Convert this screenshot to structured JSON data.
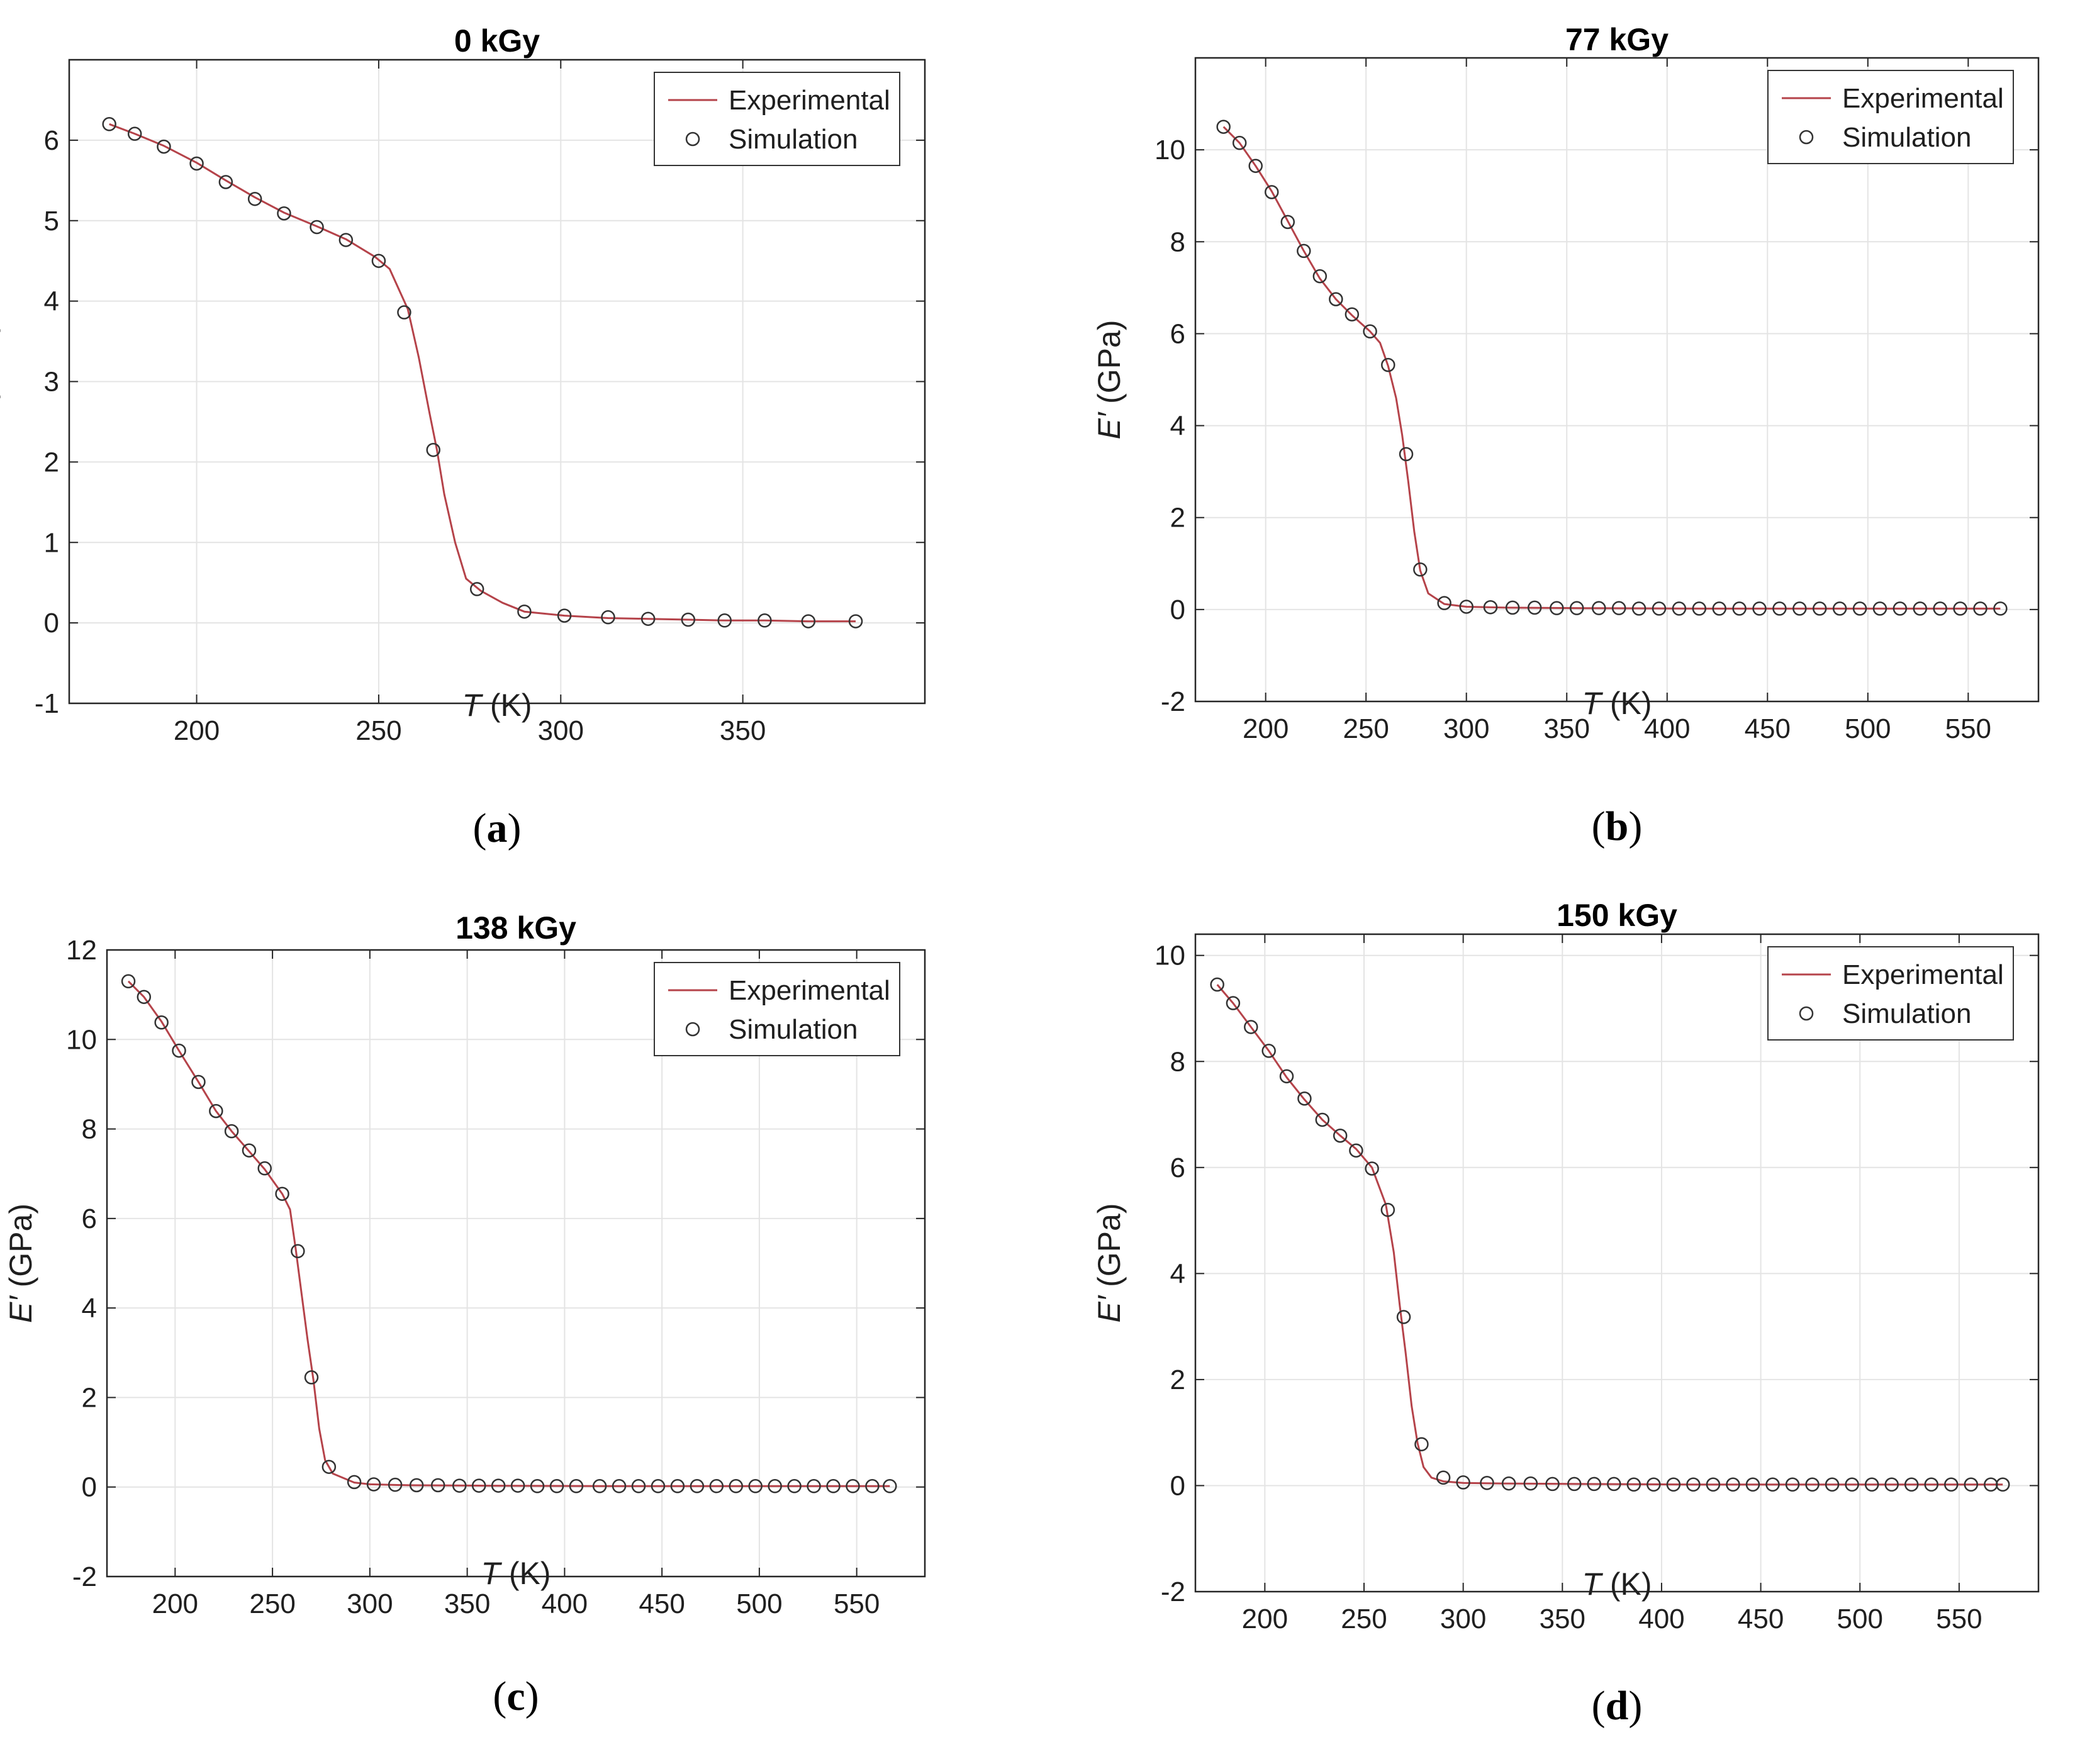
{
  "chart_data": [
    {
      "type": "line",
      "panel_label": "(a)",
      "title": "0 kGy",
      "xlabel": "T (K)",
      "ylabel": "E′ (GPa)",
      "xlim": [
        165,
        400
      ],
      "ylim": [
        -1,
        7
      ],
      "xticks": [
        200,
        250,
        300,
        350
      ],
      "yticks": [
        -1,
        0,
        1,
        2,
        3,
        4,
        5,
        6
      ],
      "grid": true,
      "legend_position": "top-right",
      "series": [
        {
          "name": "Experimental",
          "style": "line",
          "color": "#b5434a",
          "x": [
            176,
            183,
            191,
            200,
            208,
            216,
            224,
            233,
            241,
            249,
            253,
            258,
            261,
            264,
            266,
            268,
            271,
            274,
            278,
            284,
            290,
            301,
            313,
            324,
            335,
            345,
            356,
            368,
            381
          ],
          "y": [
            6.2,
            6.08,
            5.93,
            5.72,
            5.5,
            5.29,
            5.1,
            4.93,
            4.77,
            4.55,
            4.4,
            3.9,
            3.3,
            2.6,
            2.15,
            1.6,
            1.0,
            0.55,
            0.4,
            0.25,
            0.14,
            0.09,
            0.06,
            0.05,
            0.04,
            0.03,
            0.03,
            0.02,
            0.02
          ]
        },
        {
          "name": "Simulation",
          "style": "markers",
          "color": "#333333",
          "x": [
            176,
            183,
            191,
            200,
            208,
            216,
            224,
            233,
            241,
            250,
            257,
            265,
            277,
            290,
            301,
            313,
            324,
            335,
            345,
            356,
            368,
            381
          ],
          "y": [
            6.2,
            6.08,
            5.92,
            5.71,
            5.48,
            5.27,
            5.09,
            4.92,
            4.76,
            4.5,
            3.86,
            2.15,
            0.42,
            0.14,
            0.09,
            0.07,
            0.05,
            0.04,
            0.03,
            0.03,
            0.02,
            0.02
          ]
        }
      ]
    },
    {
      "type": "line",
      "panel_label": "(b)",
      "title": "77 kGy",
      "xlabel": "T (K)",
      "ylabel": "E′ (GPa)",
      "xlim": [
        165,
        585
      ],
      "ylim": [
        -2,
        12
      ],
      "xticks": [
        200,
        250,
        300,
        350,
        400,
        450,
        500,
        550
      ],
      "yticks": [
        -2,
        0,
        2,
        4,
        6,
        8,
        10
      ],
      "grid": true,
      "legend_position": "top-right",
      "series": [
        {
          "name": "Experimental",
          "style": "line",
          "color": "#b5434a",
          "x": [
            179,
            187,
            195,
            203,
            211,
            219,
            227,
            235,
            243,
            252,
            257,
            261,
            265,
            268,
            271,
            274,
            277,
            281,
            289,
            300,
            320,
            360,
            420,
            480,
            540,
            566
          ],
          "y": [
            10.5,
            10.15,
            9.65,
            9.1,
            8.45,
            7.8,
            7.2,
            6.75,
            6.4,
            6.05,
            5.8,
            5.3,
            4.6,
            3.8,
            2.8,
            1.7,
            0.85,
            0.35,
            0.12,
            0.06,
            0.04,
            0.03,
            0.02,
            0.02,
            0.02,
            0.02
          ]
        },
        {
          "name": "Simulation",
          "style": "markers",
          "color": "#333333",
          "x": [
            179,
            187,
            195,
            203,
            211,
            219,
            227,
            235,
            243,
            252,
            261,
            270,
            277,
            289,
            300,
            312,
            323,
            334,
            345,
            355,
            366,
            376,
            386,
            396,
            406,
            416,
            426,
            436,
            446,
            456,
            466,
            476,
            486,
            496,
            506,
            516,
            526,
            536,
            546,
            556,
            566
          ],
          "y": [
            10.5,
            10.15,
            9.65,
            9.08,
            8.43,
            7.8,
            7.25,
            6.75,
            6.42,
            6.05,
            5.32,
            3.38,
            0.87,
            0.14,
            0.06,
            0.05,
            0.04,
            0.04,
            0.03,
            0.03,
            0.03,
            0.03,
            0.02,
            0.02,
            0.02,
            0.02,
            0.02,
            0.02,
            0.02,
            0.02,
            0.02,
            0.02,
            0.02,
            0.02,
            0.02,
            0.02,
            0.02,
            0.02,
            0.02,
            0.02,
            0.02
          ]
        }
      ]
    },
    {
      "type": "line",
      "panel_label": "(c)",
      "title": "138 kGy",
      "xlabel": "T (K)",
      "ylabel": "E′ (GPa)",
      "xlim": [
        165,
        585
      ],
      "ylim": [
        -2,
        12
      ],
      "xticks": [
        200,
        250,
        300,
        350,
        400,
        450,
        500,
        550
      ],
      "yticks": [
        -2,
        0,
        2,
        4,
        6,
        8,
        10,
        12
      ],
      "grid": true,
      "legend_position": "top-right",
      "series": [
        {
          "name": "Experimental",
          "style": "line",
          "color": "#b5434a",
          "x": [
            176,
            184,
            193,
            202,
            212,
            221,
            229,
            238,
            246,
            255,
            259,
            262,
            265,
            268,
            271,
            274,
            277,
            281,
            292,
            300,
            320,
            360,
            420,
            480,
            540,
            567
          ],
          "y": [
            11.3,
            10.95,
            10.4,
            9.75,
            9.05,
            8.4,
            7.95,
            7.5,
            7.1,
            6.55,
            6.2,
            5.3,
            4.3,
            3.3,
            2.4,
            1.3,
            0.6,
            0.3,
            0.1,
            0.06,
            0.04,
            0.03,
            0.02,
            0.02,
            0.02,
            0.02
          ]
        },
        {
          "name": "Simulation",
          "style": "markers",
          "color": "#333333",
          "x": [
            176,
            184,
            193,
            202,
            212,
            221,
            229,
            238,
            246,
            255,
            263,
            270,
            279,
            292,
            302,
            313,
            324,
            335,
            346,
            356,
            366,
            376,
            386,
            396,
            406,
            418,
            428,
            438,
            448,
            458,
            468,
            478,
            488,
            498,
            508,
            518,
            528,
            538,
            548,
            558,
            567
          ],
          "y": [
            11.3,
            10.95,
            10.38,
            9.75,
            9.05,
            8.4,
            7.95,
            7.52,
            7.12,
            6.55,
            5.27,
            2.45,
            0.45,
            0.11,
            0.06,
            0.05,
            0.04,
            0.04,
            0.03,
            0.03,
            0.03,
            0.03,
            0.02,
            0.02,
            0.02,
            0.02,
            0.02,
            0.02,
            0.02,
            0.02,
            0.02,
            0.02,
            0.02,
            0.02,
            0.02,
            0.02,
            0.02,
            0.02,
            0.02,
            0.02,
            0.02
          ]
        }
      ]
    },
    {
      "type": "line",
      "panel_label": "(d)",
      "title": "150 kGy",
      "xlabel": "T (K)",
      "ylabel": "E′ (GPa)",
      "xlim": [
        165,
        590
      ],
      "ylim": [
        -2,
        10.4
      ],
      "xticks": [
        200,
        250,
        300,
        350,
        400,
        450,
        500,
        550
      ],
      "yticks": [
        -2,
        0,
        2,
        4,
        6,
        8,
        10
      ],
      "grid": true,
      "legend_position": "top-right",
      "series": [
        {
          "name": "Experimental",
          "style": "line",
          "color": "#b5434a",
          "x": [
            176,
            184,
            193,
            202,
            211,
            220,
            229,
            238,
            246,
            254,
            261,
            265,
            268,
            271,
            274,
            277,
            280,
            284,
            290,
            300,
            320,
            360,
            420,
            480,
            540,
            572
          ],
          "y": [
            9.45,
            9.1,
            8.65,
            8.2,
            7.7,
            7.28,
            6.9,
            6.6,
            6.35,
            6.0,
            5.3,
            4.4,
            3.4,
            2.5,
            1.5,
            0.8,
            0.35,
            0.15,
            0.08,
            0.05,
            0.04,
            0.03,
            0.02,
            0.02,
            0.02,
            0.02
          ]
        },
        {
          "name": "Simulation",
          "style": "markers",
          "color": "#333333",
          "x": [
            176,
            184,
            193,
            202,
            211,
            220,
            229,
            238,
            246,
            254,
            262,
            270,
            279,
            290,
            300,
            312,
            323,
            334,
            345,
            356,
            366,
            376,
            386,
            396,
            406,
            416,
            426,
            436,
            446,
            456,
            466,
            476,
            486,
            496,
            506,
            516,
            526,
            536,
            546,
            556,
            566,
            572
          ],
          "y": [
            9.45,
            9.1,
            8.65,
            8.2,
            7.72,
            7.3,
            6.9,
            6.6,
            6.32,
            5.98,
            5.2,
            3.18,
            0.78,
            0.15,
            0.06,
            0.05,
            0.04,
            0.04,
            0.03,
            0.03,
            0.03,
            0.03,
            0.02,
            0.02,
            0.02,
            0.02,
            0.02,
            0.02,
            0.02,
            0.02,
            0.02,
            0.02,
            0.02,
            0.02,
            0.02,
            0.02,
            0.02,
            0.02,
            0.02,
            0.02,
            0.02,
            0.02
          ]
        }
      ]
    }
  ],
  "colors": {
    "experimental_line": "#b5434a",
    "simulation_marker": "#333333",
    "grid": "#e4e4e4",
    "axes_border": "#262626"
  }
}
